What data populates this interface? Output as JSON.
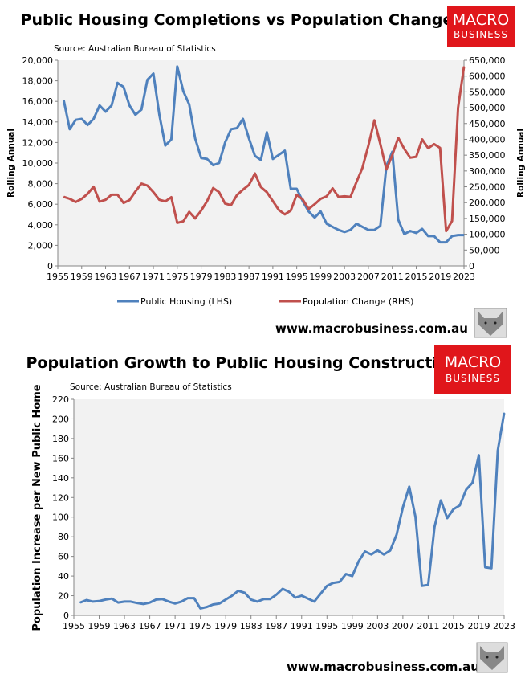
{
  "colors": {
    "public_housing": "#4f81bd",
    "population_change": "#c0504d",
    "plot_bg": "#f2f2f2",
    "logo_red": "#e0161b"
  },
  "logo": {
    "line1": "MACRO",
    "line2": "BUSINESS"
  },
  "chart_data": [
    {
      "type": "line",
      "title": "Public Housing Completions vs Population Change",
      "source": "Source: Australian Bureau of Statistics",
      "ylabel": "Rolling Annual",
      "y2label": "Rolling Annual",
      "xlim": [
        1955,
        2023
      ],
      "ylim": [
        0,
        20000
      ],
      "y2lim": [
        0,
        650000
      ],
      "grid": false,
      "legend_placement": "bottom",
      "xticks": [
        "1955",
        "1959",
        "1963",
        "1967",
        "1971",
        "1975",
        "1979",
        "1983",
        "1987",
        "1991",
        "1995",
        "1999",
        "2003",
        "2007",
        "2011",
        "2015",
        "2019",
        "2023"
      ],
      "yticks": [
        "0",
        "2,000",
        "4,000",
        "6,000",
        "8,000",
        "10,000",
        "12,000",
        "14,000",
        "16,000",
        "18,000",
        "20,000"
      ],
      "y2ticks": [
        "0",
        "50,000",
        "100,000",
        "150,000",
        "200,000",
        "250,000",
        "300,000",
        "350,000",
        "400,000",
        "450,000",
        "500,000",
        "550,000",
        "600,000",
        "650,000"
      ],
      "x_start": 1956,
      "series": [
        {
          "name": "Public Housing (LHS)",
          "axis": "left",
          "values": [
            16100,
            13300,
            14200,
            14300,
            13700,
            14300,
            15600,
            15000,
            15600,
            17800,
            17400,
            15600,
            14700,
            15200,
            18100,
            18700,
            14700,
            11700,
            12300,
            19400,
            17000,
            15700,
            12400,
            10500,
            10400,
            9800,
            10000,
            12000,
            13300,
            13400,
            14300,
            12400,
            10700,
            10300,
            13000,
            10400,
            10800,
            11200,
            7500,
            7500,
            6300,
            5300,
            4700,
            5300,
            4100,
            3800,
            3500,
            3300,
            3500,
            4100,
            3800,
            3500,
            3500,
            3900,
            9700,
            11100,
            4500,
            3100,
            3400,
            3200,
            3600,
            2900,
            2900,
            2300,
            2300,
            2900,
            3000,
            3000
          ]
        },
        {
          "name": "Population Change (RHS)",
          "axis": "right",
          "values": [
            218000,
            212000,
            202000,
            212000,
            228000,
            250000,
            203000,
            209000,
            225000,
            225000,
            199000,
            208000,
            235000,
            260000,
            254000,
            233000,
            209000,
            204000,
            217000,
            136000,
            141000,
            171000,
            150000,
            175000,
            205000,
            246000,
            233000,
            197000,
            192000,
            224000,
            241000,
            256000,
            292000,
            249000,
            233000,
            205000,
            177000,
            163000,
            175000,
            225000,
            210000,
            180000,
            195000,
            212000,
            220000,
            245000,
            218000,
            220000,
            218000,
            265000,
            310000,
            380000,
            460000,
            385000,
            305000,
            350000,
            405000,
            370000,
            342000,
            345000,
            400000,
            372000,
            385000,
            373000,
            110000,
            142000,
            500000,
            630000
          ]
        }
      ],
      "footer": "www.macrobusiness.com.au"
    },
    {
      "type": "line",
      "title": "Population Growth to Public Housing Construction",
      "source": "Source: Australian Bureau of Statistics",
      "ylabel": "Population Increase per New Public Home",
      "xlim": [
        1955,
        2023
      ],
      "ylim": [
        0,
        220
      ],
      "grid": false,
      "xticks": [
        "1955",
        "1959",
        "1963",
        "1967",
        "1971",
        "1975",
        "1979",
        "1983",
        "1987",
        "1991",
        "1995",
        "1999",
        "2003",
        "2007",
        "2011",
        "2015",
        "2019",
        "2023"
      ],
      "yticks": [
        "0",
        "20",
        "40",
        "60",
        "80",
        "100",
        "120",
        "140",
        "160",
        "180",
        "200",
        "220"
      ],
      "x_start": 1956,
      "series": [
        {
          "values": [
            13,
            15.5,
            14,
            14.5,
            16,
            17,
            13,
            14,
            14,
            12.5,
            11.5,
            13,
            16,
            16.5,
            14,
            12,
            14,
            17.5,
            17.5,
            7,
            8.5,
            11,
            12,
            16,
            20,
            25,
            23,
            16,
            14,
            16.5,
            16.5,
            21,
            27,
            24,
            18,
            20,
            17,
            14,
            22,
            30,
            33,
            34,
            42,
            40,
            55,
            65,
            62,
            66,
            62,
            66,
            82,
            110,
            131,
            100,
            30,
            31,
            90,
            117,
            99,
            108,
            112,
            128,
            135,
            163,
            49,
            48,
            168,
            206
          ]
        }
      ],
      "footer": "www.macrobusiness.com.au"
    }
  ]
}
